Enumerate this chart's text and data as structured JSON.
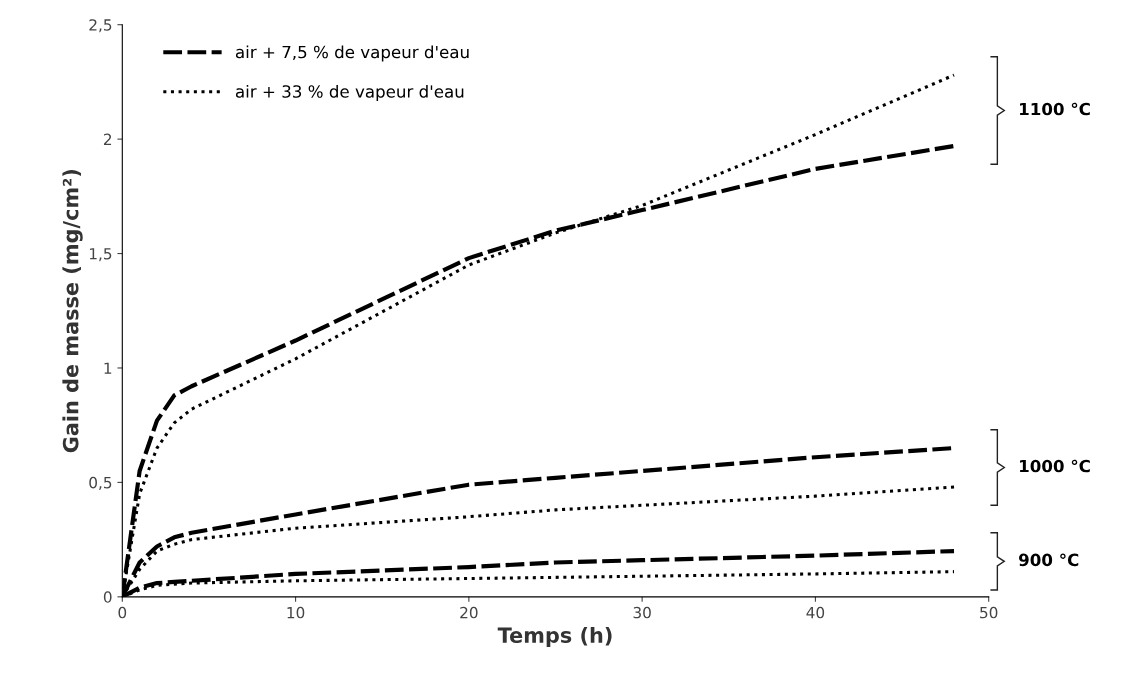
{
  "chart_data": {
    "type": "line",
    "xlabel": "Temps (h)",
    "ylabel": "Gain de masse (mg/cm²)",
    "x": [
      0,
      1,
      2,
      3,
      4,
      10,
      20,
      25,
      30,
      40,
      48
    ],
    "series": [
      {
        "name": "air + 7,5 % de vapeur d'eau",
        "color": "#000000",
        "line_style": "dashed",
        "values": [
          0,
          0.55,
          0.77,
          0.88,
          0.92,
          1.12,
          1.48,
          1.6,
          1.69,
          1.87,
          1.97
        ]
      },
      {
        "name": "air + 33 % de vapeur d'eau",
        "color": "#000000",
        "line_style": "dotted",
        "values": [
          0,
          0.45,
          0.65,
          0.76,
          0.82,
          1.04,
          1.45,
          1.59,
          1.71,
          2.02,
          2.28
        ]
      },
      {
        "color": "#000000",
        "line_style": "dashed",
        "values": [
          0,
          0.15,
          0.22,
          0.26,
          0.28,
          0.36,
          0.49,
          0.52,
          0.55,
          0.61,
          0.65
        ]
      },
      {
        "color": "#000000",
        "line_style": "dotted",
        "values": [
          0,
          0.12,
          0.2,
          0.23,
          0.25,
          0.3,
          0.35,
          0.38,
          0.4,
          0.44,
          0.48
        ]
      },
      {
        "color": "#000000",
        "line_style": "dashed",
        "values": [
          0,
          0.04,
          0.06,
          0.065,
          0.07,
          0.1,
          0.13,
          0.15,
          0.16,
          0.18,
          0.2
        ]
      },
      {
        "color": "#000000",
        "line_style": "dotted",
        "values": [
          0,
          0.03,
          0.05,
          0.055,
          0.06,
          0.07,
          0.08,
          0.085,
          0.09,
          0.1,
          0.11
        ]
      }
    ],
    "xlim": [
      0,
      50
    ],
    "xticks": [
      0,
      10,
      20,
      30,
      40,
      50
    ],
    "ylim": [
      0,
      2.5
    ],
    "yticks": [
      0,
      {
        "value": 0.5,
        "label": "0,5"
      },
      1,
      {
        "value": 1.5,
        "label": "1,5"
      },
      2,
      {
        "value": 2.5,
        "label": "2,5"
      }
    ],
    "annotations": [
      "1100 °C",
      "1000 °C",
      "900 °C"
    ],
    "grid": false,
    "legend": "top left",
    "marker": "none"
  }
}
